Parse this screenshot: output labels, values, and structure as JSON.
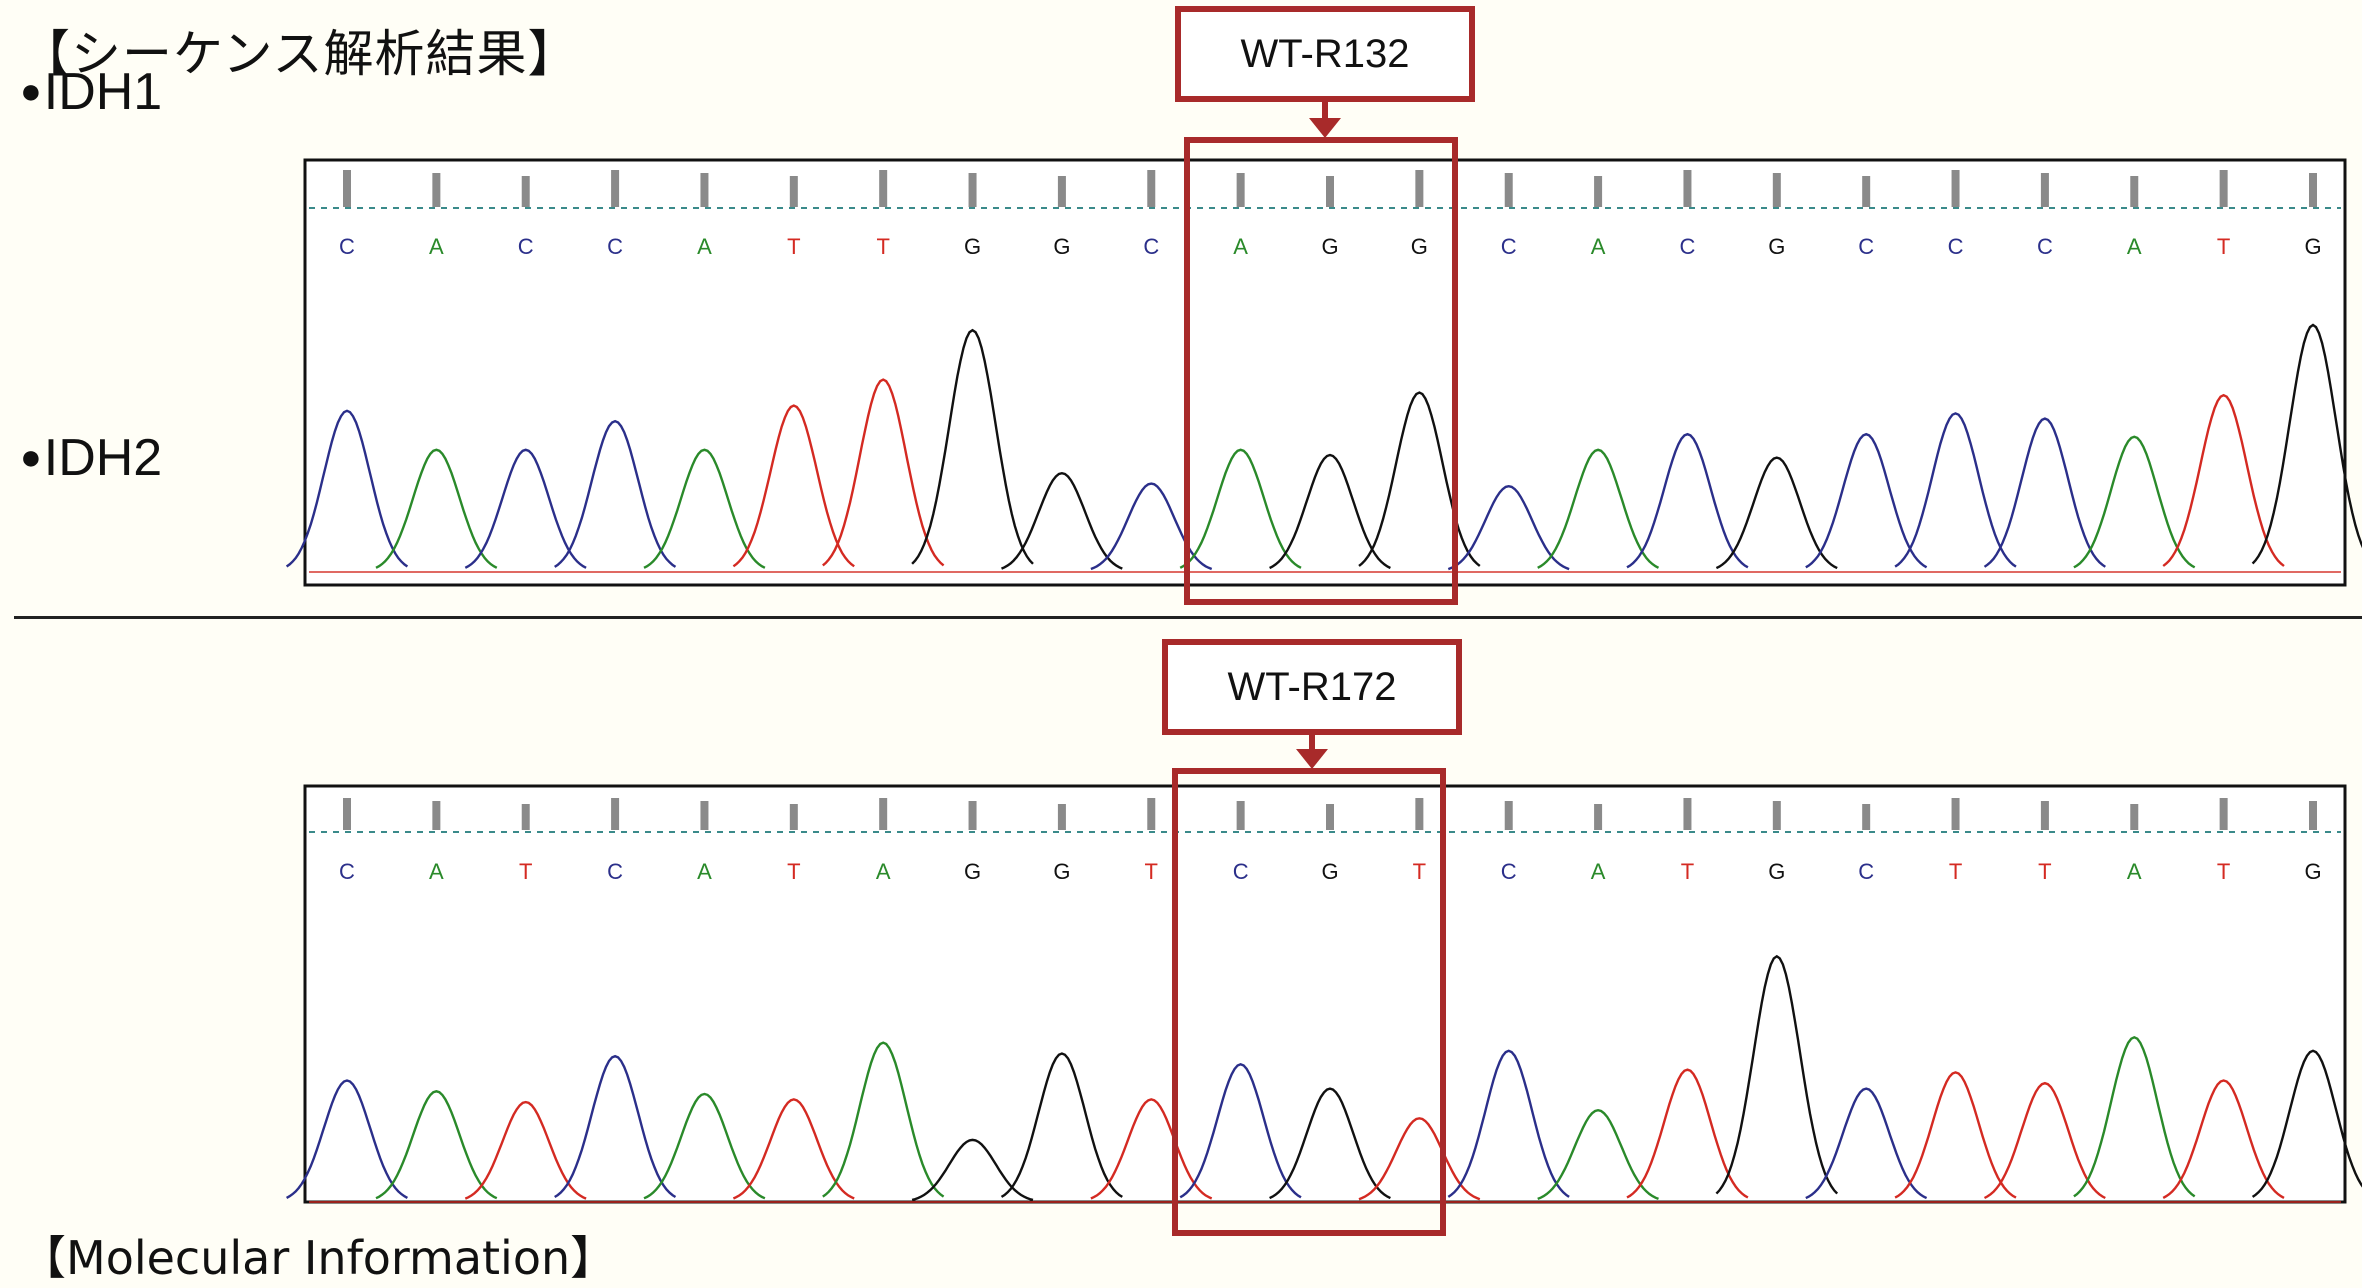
{
  "page": {
    "title": "【シーケンス解析結果】",
    "bottom_label": "【Molecular Information】"
  },
  "colors": {
    "A": "#2a8a2a",
    "C": "#2b2f8a",
    "G": "#111111",
    "T": "#d42a22",
    "highlight": "#a82a2a",
    "dotted_line": "#3a8a8a"
  },
  "chart_data": [
    {
      "type": "line",
      "gene": "IDH1",
      "callout": "WT-R132",
      "sequence": [
        "C",
        "A",
        "C",
        "C",
        "A",
        "T",
        "T",
        "G",
        "G",
        "C",
        "A",
        "G",
        "G",
        "C",
        "A",
        "C",
        "G",
        "C",
        "C",
        "C",
        "A",
        "T",
        "G"
      ],
      "highlight_bases": [
        10,
        12
      ],
      "peak_heights": [
        0.62,
        0.47,
        0.47,
        0.58,
        0.47,
        0.64,
        0.74,
        0.93,
        0.38,
        0.34,
        0.47,
        0.45,
        0.69,
        0.33,
        0.47,
        0.53,
        0.44,
        0.53,
        0.61,
        0.59,
        0.52,
        0.68,
        0.95
      ]
    },
    {
      "type": "line",
      "gene": "IDH2",
      "callout": "WT-R172",
      "sequence": [
        "C",
        "A",
        "T",
        "C",
        "A",
        "T",
        "A",
        "G",
        "G",
        "T",
        "C",
        "G",
        "T",
        "C",
        "A",
        "T",
        "G",
        "C",
        "T",
        "T",
        "A",
        "T",
        "G"
      ],
      "highlight_bases": [
        10,
        12
      ],
      "peak_heights": [
        0.45,
        0.41,
        0.37,
        0.54,
        0.4,
        0.38,
        0.59,
        0.23,
        0.55,
        0.38,
        0.51,
        0.42,
        0.31,
        0.56,
        0.34,
        0.49,
        0.91,
        0.42,
        0.48,
        0.44,
        0.61,
        0.45,
        0.56
      ]
    }
  ]
}
